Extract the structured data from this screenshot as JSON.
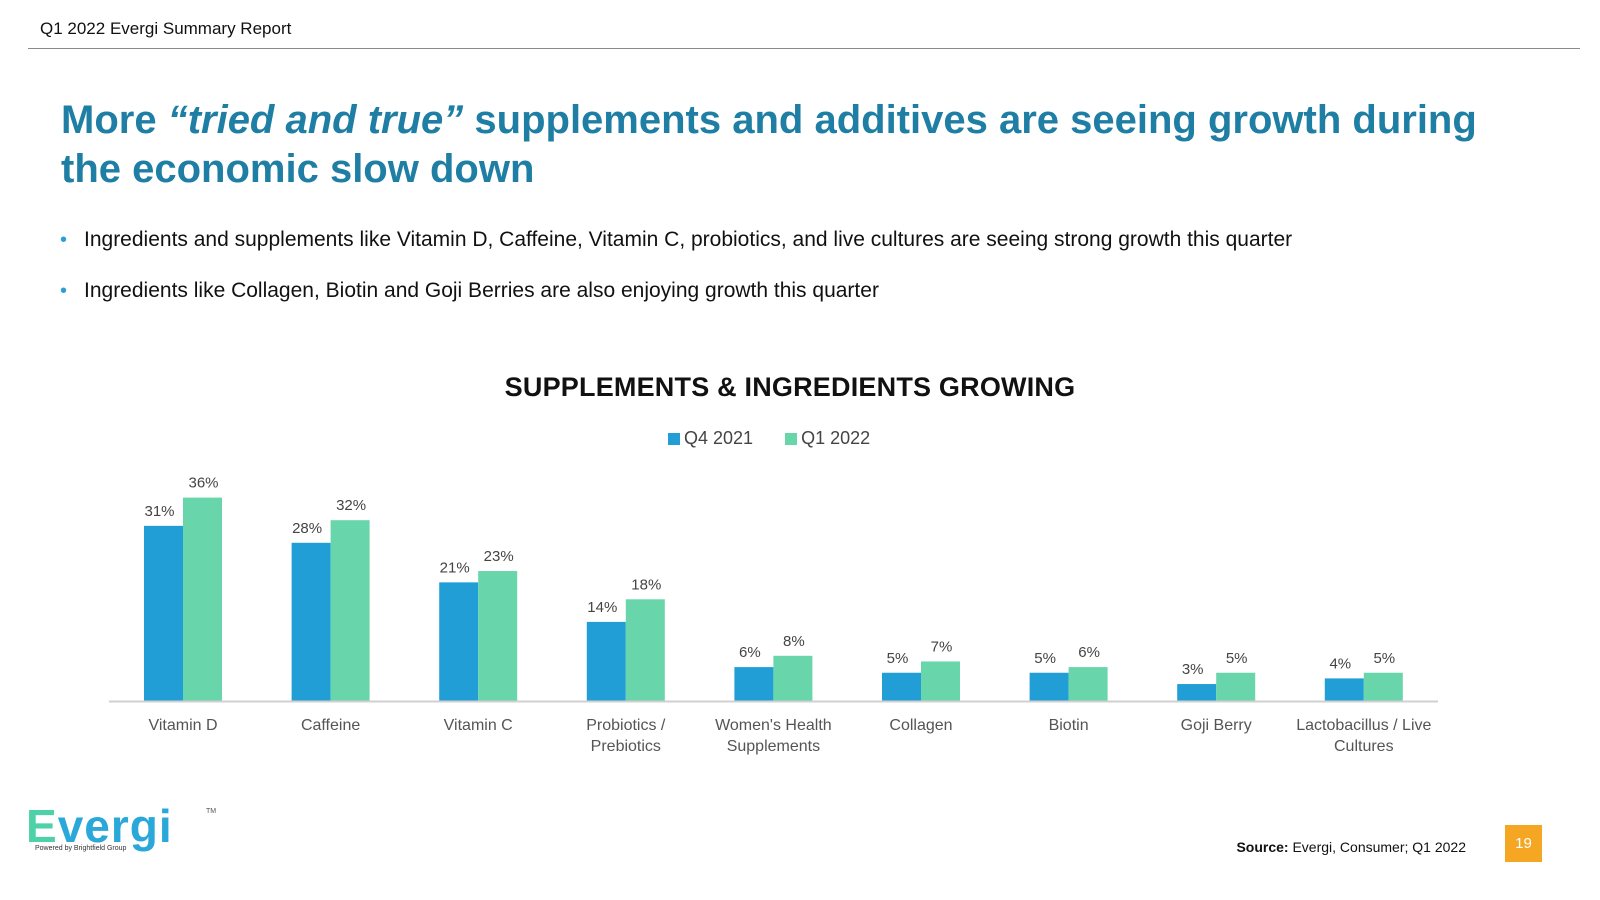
{
  "header": {
    "title": "Q1 2022 Evergi Summary Report"
  },
  "headline": {
    "pre": "More ",
    "emphasis": "“tried and true”",
    "post": " supplements and additives are seeing growth during the economic slow down"
  },
  "bullets": [
    "Ingredients and supplements like Vitamin D, Caffeine, Vitamin C, probiotics, and live cultures are seeing strong growth this quarter",
    "Ingredients like Collagen, Biotin and Goji Berries are also enjoying growth this quarter"
  ],
  "chart_data": {
    "type": "bar",
    "title": "SUPPLEMENTS & INGREDIENTS GROWING",
    "legend_position": "top-center",
    "categories": [
      [
        "Vitamin D"
      ],
      [
        "Caffeine"
      ],
      [
        "Vitamin C"
      ],
      [
        "Probiotics /",
        "Prebiotics"
      ],
      [
        "Women's Health",
        "Supplements"
      ],
      [
        "Collagen"
      ],
      [
        "Biotin"
      ],
      [
        "Goji Berry"
      ],
      [
        "Lactobacillus / Live",
        "Cultures"
      ]
    ],
    "series": [
      {
        "name": "Q4 2021",
        "color": "#229ed6",
        "values": [
          31,
          28,
          21,
          14,
          6,
          5,
          5,
          3,
          4
        ]
      },
      {
        "name": "Q1 2022",
        "color": "#68d5aa",
        "values": [
          36,
          32,
          23,
          18,
          8,
          7,
          6,
          5,
          5
        ]
      }
    ],
    "value_suffix": "%",
    "ylim": [
      0,
      40
    ],
    "grid": false
  },
  "logo": {
    "word_first": "E",
    "word_rest": "vergi",
    "tm": "TM",
    "tagline": "Powered by Brightfield Group"
  },
  "source": {
    "label": "Source:",
    "text": " Evergi, Consumer; Q1 2022"
  },
  "page_number": "19"
}
